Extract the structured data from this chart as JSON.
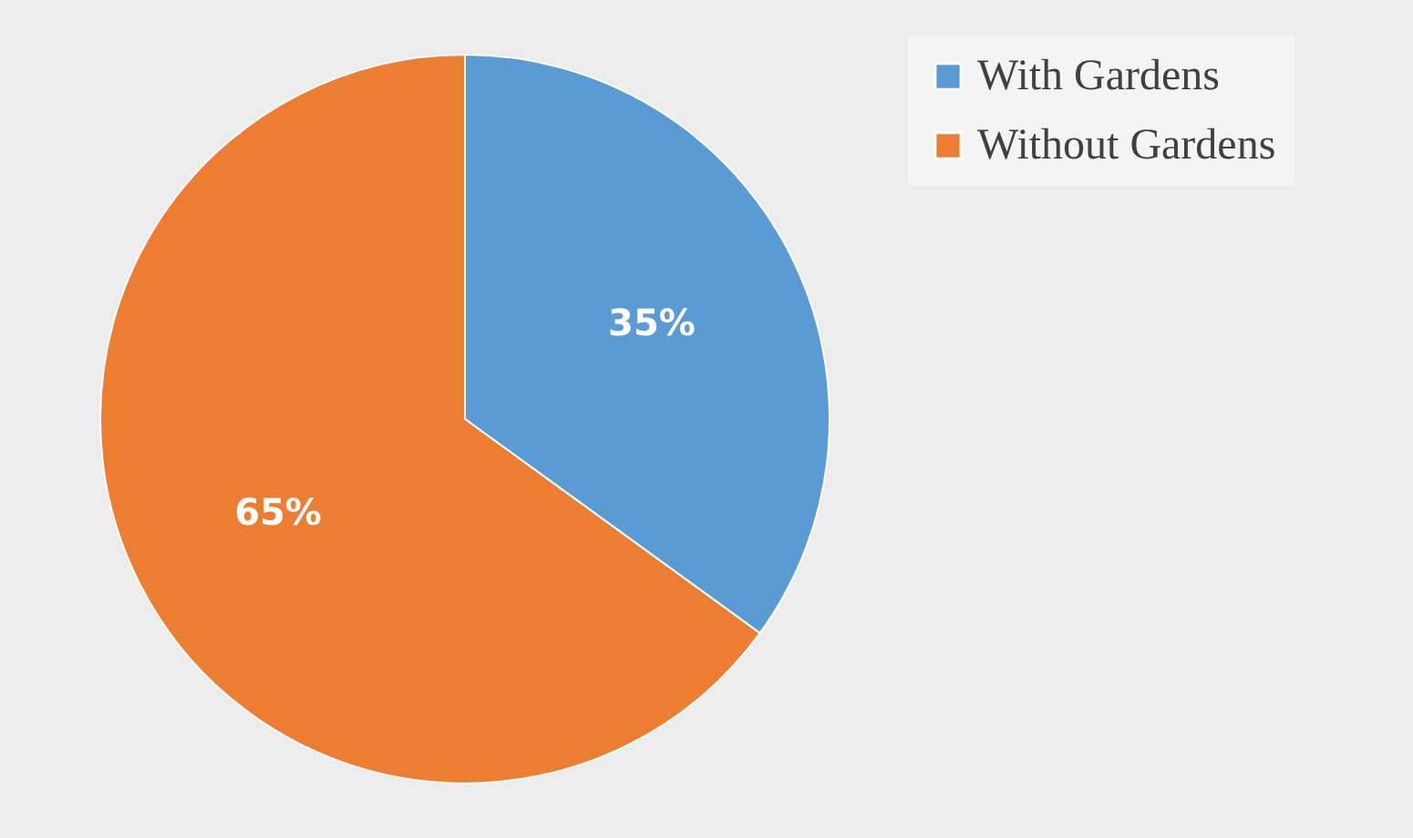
{
  "chart_data": {
    "type": "pie",
    "categories": [
      "With Gardens",
      "Without Gardens"
    ],
    "values": [
      35,
      65
    ],
    "colors": [
      "#5b9bd5",
      "#ed7d31"
    ],
    "value_labels": [
      "35%",
      "65%"
    ],
    "legend": "right"
  }
}
